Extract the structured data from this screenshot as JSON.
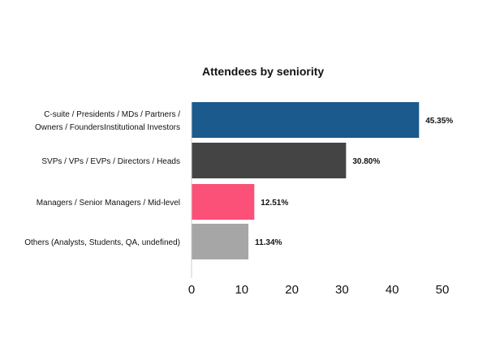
{
  "chart_data": {
    "type": "bar",
    "orientation": "horizontal",
    "title": "Attendees by seniority",
    "xlabel": "",
    "ylabel": "",
    "xlim": [
      0,
      50
    ],
    "x_ticks": [
      0,
      10,
      20,
      30,
      40,
      50
    ],
    "grid": false,
    "legend": "none",
    "categories": [
      [
        "C-suite / Presidents / MDs / Partners /",
        "Owners / FoundersInstitutional Investors"
      ],
      [
        "SVPs / VPs / EVPs / Directors / Heads"
      ],
      [
        "Managers / Senior Managers / Mid-level"
      ],
      [
        "Others (Analysts, Students, QA, undefined)"
      ]
    ],
    "values": [
      45.35,
      30.8,
      12.51,
      11.34
    ],
    "value_labels": [
      "45.35%",
      "30.80%",
      "12.51%",
      "11.34%"
    ],
    "colors": [
      "#1a5a8c",
      "#444444",
      "#fb5078",
      "#a6a6a6"
    ]
  }
}
